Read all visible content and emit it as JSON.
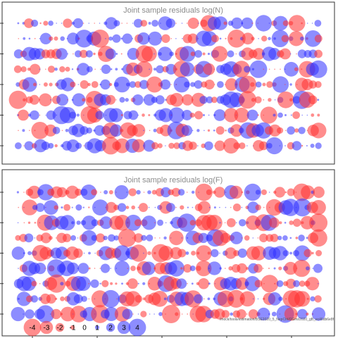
{
  "chart_data": [
    {
      "type": "bubble",
      "title": "Joint sample residuals log(N)",
      "rows": 9,
      "cols": 56,
      "seed": 17
    },
    {
      "type": "bubble",
      "title": "Joint sample residuals log(F)",
      "rows": 9,
      "cols": 56,
      "seed": 91
    }
  ],
  "legend": {
    "values": [
      -4,
      -3,
      -2,
      -1,
      0,
      1,
      2,
      3,
      4
    ],
    "labels": [
      "-4",
      "-3",
      "-2",
      "-1",
      "0",
      "1",
      "2",
      "3",
      "4"
    ]
  },
  "footnote": "/mock/tools/estimation/BSE2020_5_NepCtrl/OGmi/2020_gB_ec46db6e8f",
  "colors": {
    "negative": "#ff2f2f",
    "positive": "#3030ff",
    "frame": "#333333",
    "title": "#8c8c8c"
  }
}
